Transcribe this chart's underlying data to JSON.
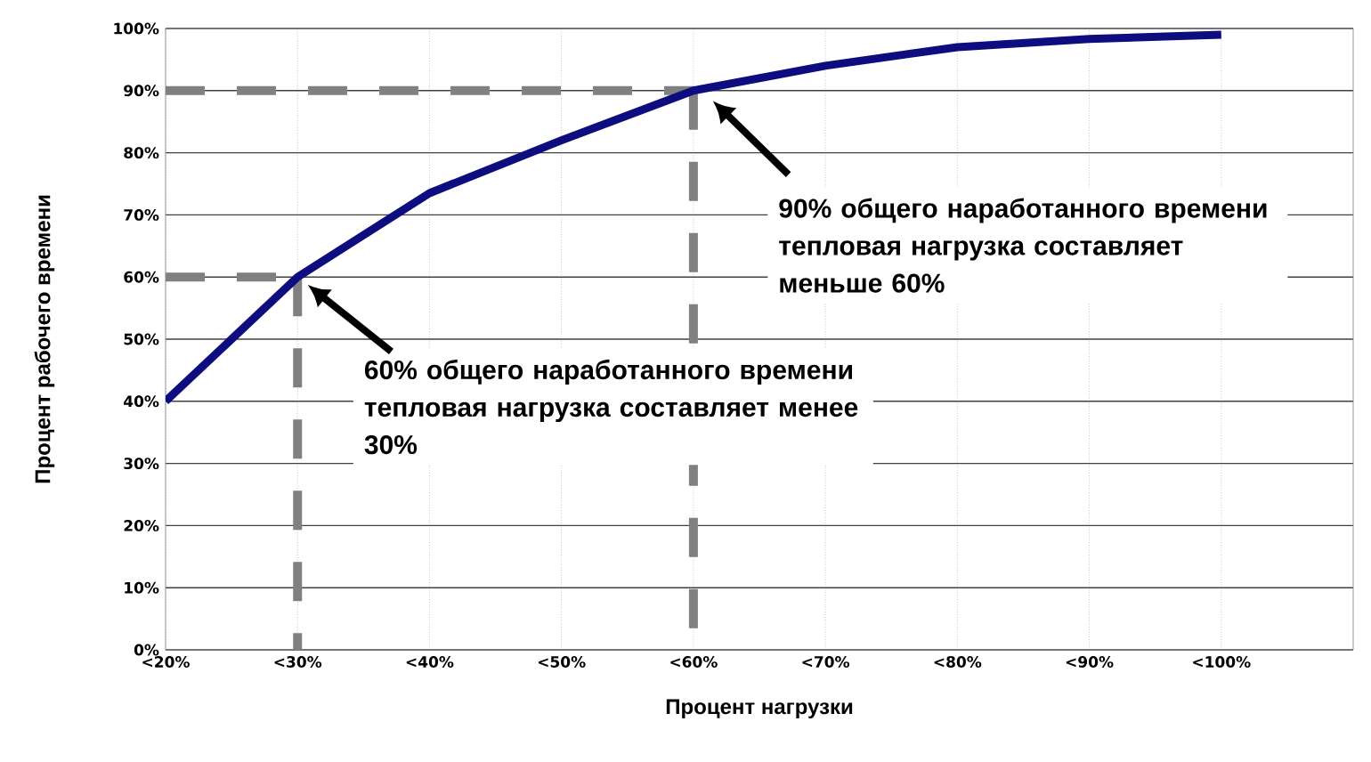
{
  "chart_data": {
    "type": "line",
    "xlabel": "Процент нагрузки",
    "ylabel": "Процент рабочего времени",
    "categories": [
      "<20%",
      "<30%",
      "<40%",
      "<50%",
      "<60%",
      "<70%",
      "<80%",
      "<90%",
      "<100%"
    ],
    "series": [
      {
        "color": "#0d0d80",
        "values": [
          40,
          60,
          73.5,
          82,
          90,
          94,
          97,
          98.3,
          99
        ]
      }
    ],
    "ylim": [
      0,
      100
    ],
    "yticks": [
      {
        "value": 0,
        "label": "0%"
      },
      {
        "value": 10,
        "label": "10%"
      },
      {
        "value": 20,
        "label": "20%"
      },
      {
        "value": 30,
        "label": "30%"
      },
      {
        "value": 40,
        "label": "40%"
      },
      {
        "value": 50,
        "label": "50%"
      },
      {
        "value": 60,
        "label": "60%"
      },
      {
        "value": 70,
        "label": "70%"
      },
      {
        "value": 80,
        "label": "80%"
      },
      {
        "value": 90,
        "label": "90%"
      },
      {
        "value": 100,
        "label": "100%"
      }
    ],
    "grid": true,
    "marker": "none",
    "line_style": "solid",
    "ref_lines": [
      {
        "axis": "y",
        "value": 60,
        "color": "#808080",
        "line_style": "dashed"
      },
      {
        "axis": "x",
        "value": "<30%",
        "color": "#808080",
        "line_style": "dashed"
      },
      {
        "axis": "y",
        "value": 90,
        "color": "#808080",
        "line_style": "dashed"
      },
      {
        "axis": "x",
        "value": "<60%",
        "color": "#808080",
        "line_style": "dashed"
      }
    ],
    "annotations": [
      "60% общего наработанного времени тепловая нагрузка составляет менее 30%",
      "90% общего наработанного времени тепловая нагрузка составляет меньше 60%"
    ]
  }
}
